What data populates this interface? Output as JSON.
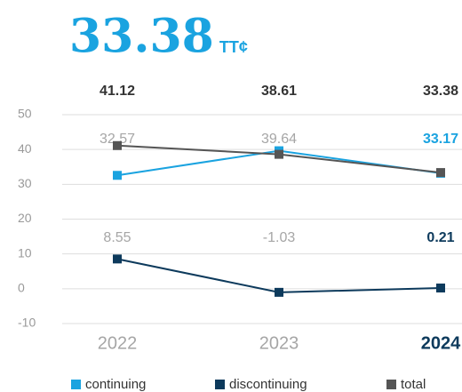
{
  "chart_data": {
    "type": "line",
    "title": "33.38",
    "title_unit": "TT¢",
    "title_color": "#1aa3e0",
    "categories": [
      "2022",
      "2023",
      "2024"
    ],
    "category_colors": [
      "#a6a6a6",
      "#a6a6a6",
      "#0d3a5c"
    ],
    "series": [
      {
        "name": "continuing",
        "color": "#1aa3e0",
        "values": [
          32.57,
          39.64,
          33.17
        ],
        "label_colors": [
          "#a6a6a6",
          "#a6a6a6",
          "#1aa3e0"
        ]
      },
      {
        "name": "discontinuing",
        "color": "#0d3a5c",
        "values": [
          8.55,
          -1.03,
          0.21
        ],
        "label_colors": [
          "#a6a6a6",
          "#a6a6a6",
          "#0d3a5c"
        ]
      },
      {
        "name": "total",
        "color": "#555555",
        "values": [
          41.12,
          38.61,
          33.38
        ],
        "label_colors": [
          "#333333",
          "#333333",
          "#333333"
        ]
      }
    ],
    "ylim": [
      -10,
      50
    ],
    "yticks": [
      -10,
      0,
      10,
      20,
      30,
      40,
      50
    ],
    "grid": true
  }
}
